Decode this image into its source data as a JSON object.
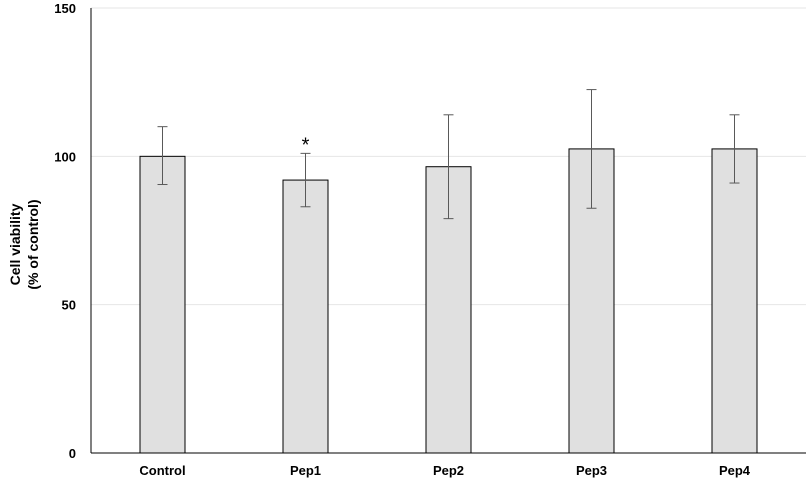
{
  "chart_data": {
    "type": "bar",
    "categories": [
      "Control",
      "Pep1",
      "Pep2",
      "Pep3",
      "Pep4"
    ],
    "values": [
      100,
      92,
      96.5,
      102.5,
      102.5
    ],
    "error_high": [
      110,
      101,
      114,
      122.5,
      114
    ],
    "error_low": [
      90.5,
      83,
      79,
      82.5,
      91
    ],
    "annotations": [
      {
        "category": "Pep1",
        "text": "*"
      }
    ],
    "ylabel_lines": [
      "Cell viability",
      "(% of control)"
    ],
    "xlabel": "",
    "title": "",
    "ylim": [
      0,
      150
    ],
    "yticks": [
      0,
      50,
      100,
      150
    ],
    "grid": true,
    "bar_color": "#e0e0e0",
    "bar_edge_color": "#000000",
    "error_color": "#595959",
    "grid_color": "#e6e6e6"
  }
}
